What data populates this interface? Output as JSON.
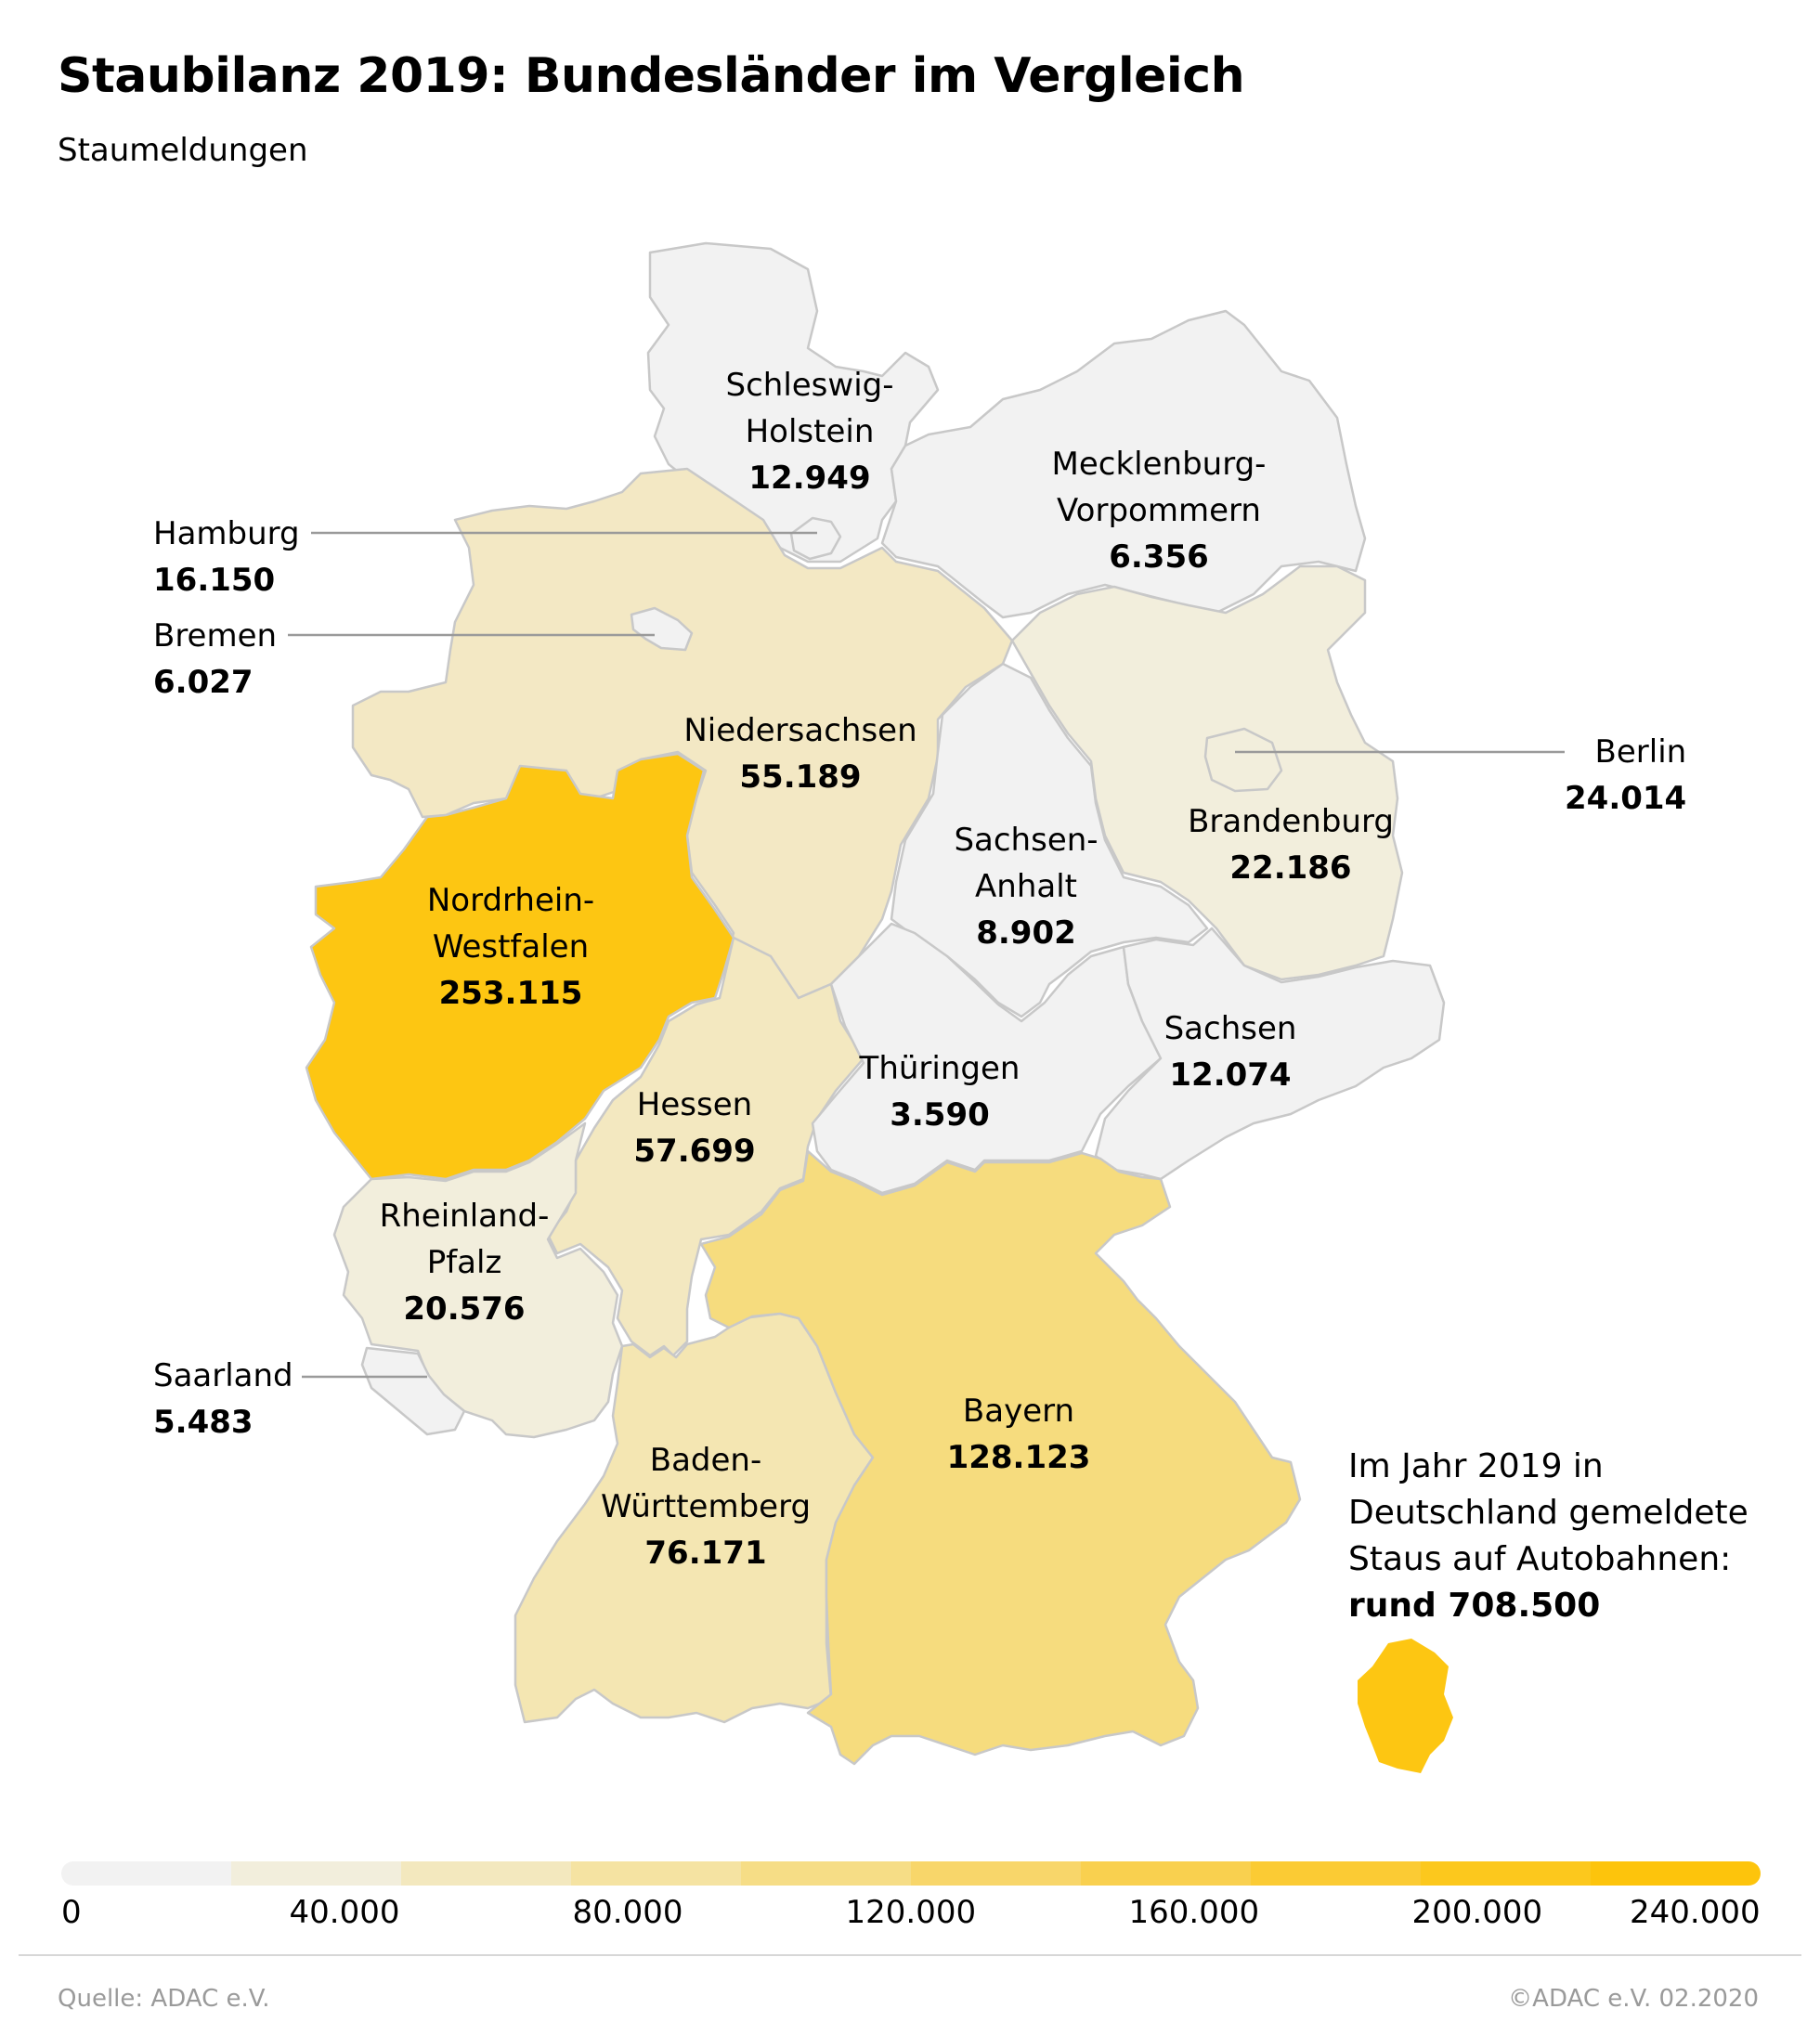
{
  "header": {
    "title": "Staubilanz 2019: Bundesländer im Vergleich",
    "subtitle": "Staumeldungen"
  },
  "colors": {
    "scale": [
      "#f2f2f2",
      "#f2eedc",
      "#f3e8be",
      "#f5e3a2",
      "#f6dd86",
      "#f8d66a",
      "#f9d04f",
      "#fbcb34",
      "#fcc81d",
      "#fdc40c"
    ],
    "leader_line": "#9a9a9a",
    "region_stroke": "#c8c8c8"
  },
  "regions": [
    {
      "id": "schleswig-holstein",
      "name": "Schleswig-\nHolstein",
      "value": "12.949",
      "color": "#f2f2f2"
    },
    {
      "id": "hamburg",
      "name": "Hamburg",
      "value": "16.150",
      "color": "#f2f2f2"
    },
    {
      "id": "bremen",
      "name": "Bremen",
      "value": "6.027",
      "color": "#f2f2f2"
    },
    {
      "id": "mecklenburg-vorpommern",
      "name": "Mecklenburg-\nVorpommern",
      "value": "6.356",
      "color": "#f2f2f2"
    },
    {
      "id": "niedersachsen",
      "name": "Niedersachsen",
      "value": "55.189",
      "color": "#f3e8c4"
    },
    {
      "id": "berlin",
      "name": "Berlin",
      "value": "24.014",
      "color": "#f2eedc"
    },
    {
      "id": "brandenburg",
      "name": "Brandenburg",
      "value": "22.186",
      "color": "#f2eedc"
    },
    {
      "id": "sachsen-anhalt",
      "name": "Sachsen-\nAnhalt",
      "value": "8.902",
      "color": "#f2f2f2"
    },
    {
      "id": "nordrhein-westfalen",
      "name": "Nordrhein-\nWestfalen",
      "value": "253.115",
      "color": "#fdc612"
    },
    {
      "id": "sachsen",
      "name": "Sachsen",
      "value": "12.074",
      "color": "#f2f2f2"
    },
    {
      "id": "thueringen",
      "name": "Thüringen",
      "value": "3.590",
      "color": "#f2f2f2"
    },
    {
      "id": "hessen",
      "name": "Hessen",
      "value": "57.699",
      "color": "#f3e8c0"
    },
    {
      "id": "rheinland-pfalz",
      "name": "Rheinland-\nPfalz",
      "value": "20.576",
      "color": "#f2eedc"
    },
    {
      "id": "saarland",
      "name": "Saarland",
      "value": "5.483",
      "color": "#f2f2f2"
    },
    {
      "id": "bayern",
      "name": "Bayern",
      "value": "128.123",
      "color": "#f6dc7e"
    },
    {
      "id": "baden-wuerttemberg",
      "name": "Baden-\nWürttemberg",
      "value": "76.171",
      "color": "#f4e6b2"
    }
  ],
  "total": {
    "text": "Im Jahr 2019 in\nDeutschland gemeldete\nStaus auf Autobahnen:",
    "value": "rund 708.500",
    "icon_color": "#fdc612"
  },
  "legend": {
    "ticks": [
      "0",
      "40.000",
      "80.000",
      "120.000",
      "160.000",
      "200.000",
      "240.000"
    ]
  },
  "footer": {
    "source": "Quelle: ADAC e.V.",
    "copyright": "©ADAC e.V.  02.2020"
  }
}
